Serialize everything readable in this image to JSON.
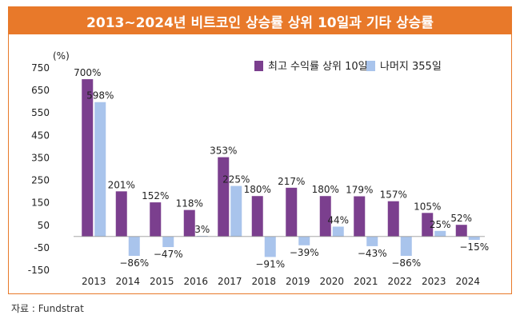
{
  "title": "2013~2024년 비트코인 상승률 상위 10일과 기타 상승률",
  "source": "자료 : Fundstrat",
  "chart_data": {
    "type": "bar",
    "title": "2013~2024년 비트코인 상승률 상위 10일과 기타 상승률",
    "ylabel": "(%)",
    "ylim": [
      -150,
      750
    ],
    "yticks": [
      "750",
      "650",
      "550",
      "450",
      "350",
      "250",
      "150",
      "50",
      "-50",
      "-150"
    ],
    "ytick_values": [
      750,
      650,
      550,
      450,
      350,
      250,
      150,
      50,
      -50,
      -150
    ],
    "categories": [
      "2013",
      "2014",
      "2015",
      "2016",
      "2017",
      "2018",
      "2019",
      "2020",
      "2021",
      "2022",
      "2023",
      "2024"
    ],
    "series": [
      {
        "name": "최고 수익률 상위 10일",
        "color": "#7b3f8e",
        "values": [
          700,
          201,
          152,
          118,
          353,
          180,
          217,
          180,
          179,
          157,
          105,
          52
        ],
        "labels": [
          "700%",
          "201%",
          "152%",
          "118%",
          "353%",
          "180%",
          "217%",
          "180%",
          "179%",
          "157%",
          "105%",
          "52%"
        ]
      },
      {
        "name": "나머지 355일",
        "color": "#a9c4ec",
        "values": [
          598,
          -86,
          -47,
          3,
          225,
          -91,
          -39,
          44,
          -43,
          -86,
          25,
          -15
        ],
        "labels": [
          "598%",
          "−86%",
          "−47%",
          "3%",
          "225%",
          "−91%",
          "−39%",
          "44%",
          "−43%",
          "−86%",
          "25%",
          "−15%"
        ]
      }
    ],
    "legend": "top-right",
    "grid": false
  }
}
